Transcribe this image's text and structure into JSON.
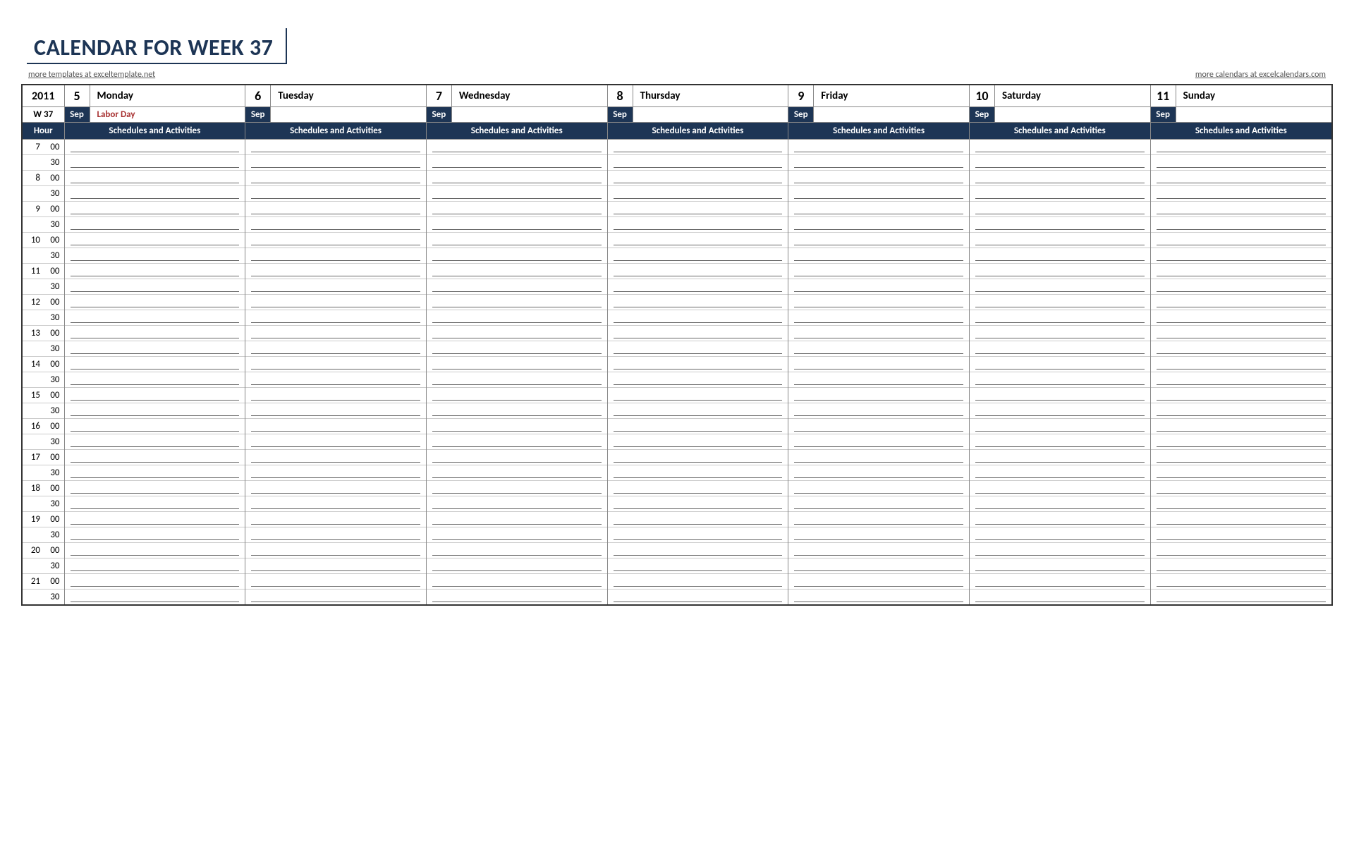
{
  "title": "CALENDAR FOR WEEK 37",
  "link_left": "more templates at exceltemplate.net",
  "link_right": "more calendars at excelcalendars.com",
  "year": "2011",
  "week_label": "W 37",
  "hour_label": "Hour",
  "schedules_label": "Schedules and Activities",
  "colors": {
    "header_dark": "#1d3555",
    "title_text": "#1d3555",
    "event_text": "#a83232",
    "border": "#888888",
    "line": "#666666"
  },
  "days": [
    {
      "date": "5",
      "name": "Monday",
      "month": "Sep",
      "event": "Labor Day"
    },
    {
      "date": "6",
      "name": "Tuesday",
      "month": "Sep",
      "event": ""
    },
    {
      "date": "7",
      "name": "Wednesday",
      "month": "Sep",
      "event": ""
    },
    {
      "date": "8",
      "name": "Thursday",
      "month": "Sep",
      "event": ""
    },
    {
      "date": "9",
      "name": "Friday",
      "month": "Sep",
      "event": ""
    },
    {
      "date": "10",
      "name": "Saturday",
      "month": "Sep",
      "event": ""
    },
    {
      "date": "11",
      "name": "Sunday",
      "month": "Sep",
      "event": ""
    }
  ],
  "time_slots": [
    {
      "hour": "7",
      "min": "00"
    },
    {
      "hour": "",
      "min": "30"
    },
    {
      "hour": "8",
      "min": "00"
    },
    {
      "hour": "",
      "min": "30"
    },
    {
      "hour": "9",
      "min": "00"
    },
    {
      "hour": "",
      "min": "30"
    },
    {
      "hour": "10",
      "min": "00"
    },
    {
      "hour": "",
      "min": "30"
    },
    {
      "hour": "11",
      "min": "00"
    },
    {
      "hour": "",
      "min": "30"
    },
    {
      "hour": "12",
      "min": "00"
    },
    {
      "hour": "",
      "min": "30"
    },
    {
      "hour": "13",
      "min": "00"
    },
    {
      "hour": "",
      "min": "30"
    },
    {
      "hour": "14",
      "min": "00"
    },
    {
      "hour": "",
      "min": "30"
    },
    {
      "hour": "15",
      "min": "00"
    },
    {
      "hour": "",
      "min": "30"
    },
    {
      "hour": "16",
      "min": "00"
    },
    {
      "hour": "",
      "min": "30"
    },
    {
      "hour": "17",
      "min": "00"
    },
    {
      "hour": "",
      "min": "30"
    },
    {
      "hour": "18",
      "min": "00"
    },
    {
      "hour": "",
      "min": "30"
    },
    {
      "hour": "19",
      "min": "00"
    },
    {
      "hour": "",
      "min": "30"
    },
    {
      "hour": "20",
      "min": "00"
    },
    {
      "hour": "",
      "min": "30"
    },
    {
      "hour": "21",
      "min": "00"
    },
    {
      "hour": "",
      "min": "30"
    }
  ]
}
